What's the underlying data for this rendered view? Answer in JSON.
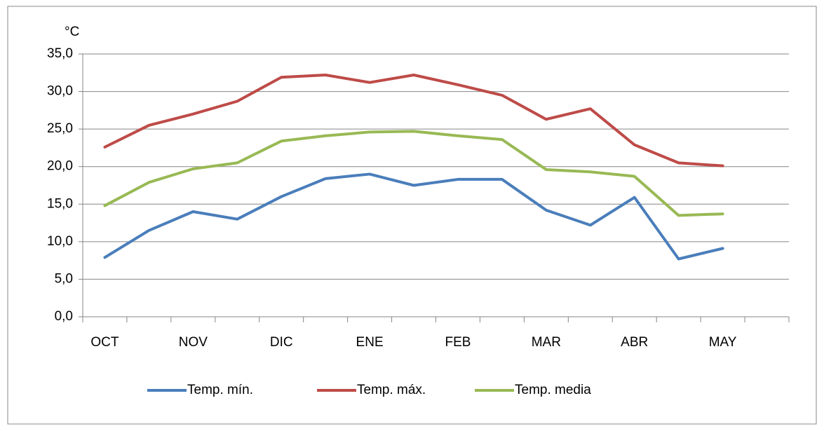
{
  "chart_data": {
    "type": "line",
    "ylabel": "°C",
    "categories": [
      "OCT",
      null,
      "NOV",
      null,
      "DIC",
      null,
      "ENE",
      null,
      "FEB",
      null,
      "MAR",
      null,
      "ABR",
      null,
      "MAY",
      null
    ],
    "series": [
      {
        "name": "Temp. mín.",
        "color": "#4a7ebb",
        "values": [
          7.9,
          11.5,
          14.0,
          13.0,
          16.0,
          18.4,
          19.0,
          17.5,
          18.3,
          18.3,
          14.2,
          12.2,
          15.9,
          7.7,
          9.1,
          null
        ]
      },
      {
        "name": "Temp. máx.",
        "color": "#be4b48",
        "values": [
          22.6,
          25.5,
          27.0,
          28.7,
          31.9,
          32.2,
          31.2,
          32.2,
          30.9,
          29.5,
          26.3,
          27.7,
          22.9,
          20.5,
          20.1,
          null
        ]
      },
      {
        "name": "Temp. media",
        "color": "#98b954",
        "values": [
          14.8,
          17.9,
          19.7,
          20.5,
          23.4,
          24.1,
          24.6,
          24.7,
          24.1,
          23.6,
          19.6,
          19.3,
          18.7,
          13.5,
          13.7,
          null
        ]
      }
    ],
    "ylim": [
      0,
      35
    ],
    "yticks": [
      {
        "value": 0,
        "label": "0,0"
      },
      {
        "value": 5,
        "label": "5,0"
      },
      {
        "value": 10,
        "label": "10,0"
      },
      {
        "value": 15,
        "label": "15,0"
      },
      {
        "value": 20,
        "label": "20,0"
      },
      {
        "value": 25,
        "label": "25,0"
      },
      {
        "value": 30,
        "label": "30,0"
      },
      {
        "value": 35,
        "label": "35,0"
      }
    ],
    "grid": true,
    "legend": "bottom"
  }
}
